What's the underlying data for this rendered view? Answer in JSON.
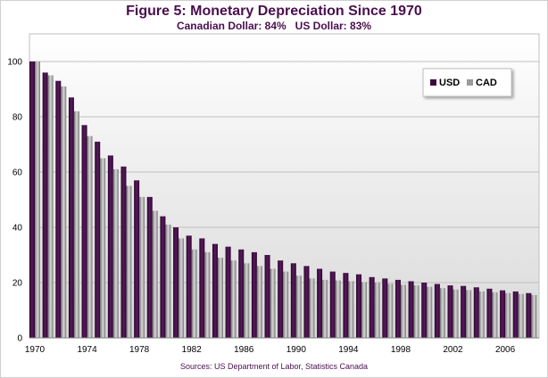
{
  "title": "Figure 5: Monetary Depreciation Since 1970",
  "subtitle": "Canadian Dollar: 84%   US Dollar: 83%",
  "source": "Sources: US Department of Labor, Statistics Canada",
  "colors": {
    "usd": "#3d0a3f",
    "cad": "#9a9a9a",
    "plot_bg_top": "#ffffff",
    "plot_bg_bottom": "#d9d9d9",
    "grid": "#bfbfbf",
    "title": "#4a0e4e"
  },
  "chart_data": {
    "type": "bar",
    "title": "Figure 5: Monetary Depreciation Since 1970",
    "subtitle": "Canadian Dollar: 84%   US Dollar: 83%",
    "xlabel": "",
    "ylabel": "",
    "ylim": [
      0,
      110
    ],
    "yticks": [
      0,
      20,
      40,
      60,
      80,
      100
    ],
    "grid": true,
    "legend_position": "top-right",
    "categories": [
      1970,
      1971,
      1972,
      1973,
      1974,
      1975,
      1976,
      1977,
      1978,
      1979,
      1980,
      1981,
      1982,
      1983,
      1984,
      1985,
      1986,
      1987,
      1988,
      1989,
      1990,
      1991,
      1992,
      1993,
      1994,
      1995,
      1996,
      1997,
      1998,
      1999,
      2000,
      2001,
      2002,
      2003,
      2004,
      2005,
      2006,
      2007,
      2008
    ],
    "xtick_labels": [
      "1970",
      "1974",
      "1978",
      "1982",
      "1986",
      "1990",
      "1994",
      "1998",
      "2002",
      "2006"
    ],
    "series": [
      {
        "name": "USD",
        "values": [
          100,
          96,
          93,
          87,
          77,
          71,
          66,
          62,
          57,
          51,
          44,
          40,
          37,
          36,
          34,
          33,
          32,
          31,
          30,
          28,
          27,
          26,
          25,
          24,
          23.5,
          23,
          22,
          21.5,
          21,
          20.5,
          20,
          19.5,
          19,
          18.8,
          18.3,
          17.8,
          17.2,
          16.8,
          16.2
        ]
      },
      {
        "name": "CAD",
        "values": [
          100,
          95,
          91,
          82,
          73,
          65,
          61,
          55,
          51,
          46,
          41,
          36,
          32,
          31,
          29,
          28,
          27,
          26,
          25,
          24,
          22.5,
          21.5,
          21,
          20.8,
          20.5,
          20.2,
          20,
          19.6,
          19.2,
          19,
          18.5,
          18,
          17.5,
          17.3,
          16.8,
          16.5,
          16.2,
          15.9,
          15.5
        ]
      }
    ]
  }
}
